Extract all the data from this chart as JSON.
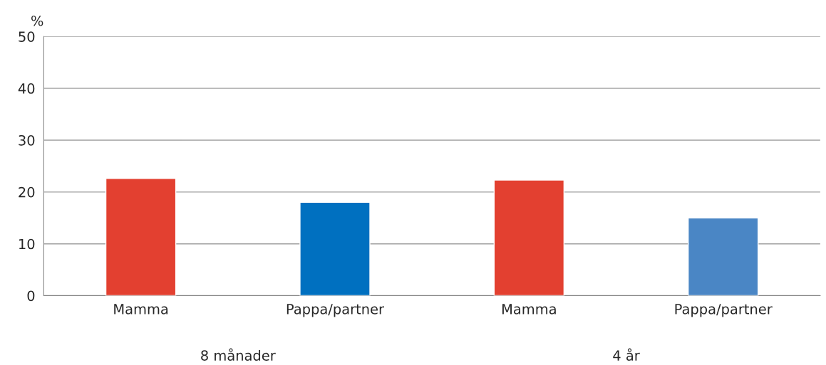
{
  "chart_data": {
    "type": "bar",
    "ylabel": "%",
    "categories": [
      "Mamma",
      "Pappa/partner",
      "Mamma",
      "Pappa/partner"
    ],
    "values": [
      22.6,
      18.0,
      22.3,
      15.0
    ],
    "colors": [
      "#e34030",
      "#0070c0",
      "#e34030",
      "#4a86c5"
    ],
    "ylim": [
      0,
      50
    ],
    "yticks": [
      0,
      10,
      20,
      30,
      40,
      50
    ],
    "grid": "y",
    "annotations": [
      "8 månader",
      "4 år"
    ]
  }
}
